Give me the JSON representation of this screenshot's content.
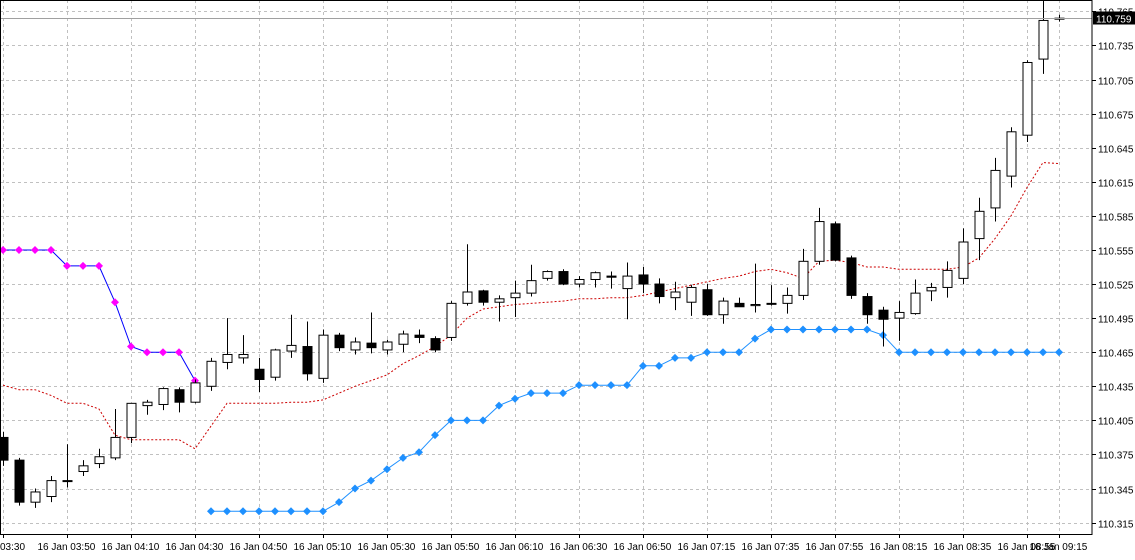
{
  "chart_data": {
    "type": "candlestick",
    "title": "",
    "xlabel": "",
    "ylabel": "",
    "ylim": [
      110.305,
      110.775
    ],
    "grid": true,
    "current_price": "110.759",
    "x_ticks": [
      {
        "index": 0,
        "label": "03:30"
      },
      {
        "index": 4,
        "label": "16 Jan 03:50"
      },
      {
        "index": 8,
        "label": "16 Jan 04:10"
      },
      {
        "index": 12,
        "label": "16 Jan 04:30"
      },
      {
        "index": 16,
        "label": "16 Jan 04:50"
      },
      {
        "index": 20,
        "label": "16 Jan 05:10"
      },
      {
        "index": 24,
        "label": "16 Jan 05:30"
      },
      {
        "index": 28,
        "label": "16 Jan 05:50"
      },
      {
        "index": 32,
        "label": "16 Jan 06:10"
      },
      {
        "index": 36,
        "label": "16 Jan 06:30"
      },
      {
        "index": 40,
        "label": "16 Jan 06:50"
      },
      {
        "index": 44,
        "label": "16 Jan 07:15"
      },
      {
        "index": 48,
        "label": "16 Jan 07:35"
      },
      {
        "index": 52,
        "label": "16 Jan 07:55"
      },
      {
        "index": 56,
        "label": "16 Jan 08:15"
      },
      {
        "index": 60,
        "label": "16 Jan 08:35"
      },
      {
        "index": 64,
        "label": "16 Jan 08:55"
      },
      {
        "index": 66,
        "label": "16 Jan 09:15"
      }
    ],
    "y_ticks": [
      "110.315",
      "110.345",
      "110.375",
      "110.405",
      "110.435",
      "110.465",
      "110.495",
      "110.525",
      "110.555",
      "110.585",
      "110.615",
      "110.645",
      "110.675",
      "110.705",
      "110.735",
      "110.765"
    ],
    "candles": [
      {
        "o": 110.39,
        "h": 110.395,
        "l": 110.365,
        "c": 110.37
      },
      {
        "o": 110.37,
        "h": 110.372,
        "l": 110.33,
        "c": 110.333
      },
      {
        "o": 110.333,
        "h": 110.345,
        "l": 110.328,
        "c": 110.342
      },
      {
        "o": 110.338,
        "h": 110.356,
        "l": 110.333,
        "c": 110.352
      },
      {
        "o": 110.352,
        "h": 110.384,
        "l": 110.346,
        "c": 110.352
      },
      {
        "o": 110.36,
        "h": 110.37,
        "l": 110.356,
        "c": 110.365
      },
      {
        "o": 110.367,
        "h": 110.38,
        "l": 110.363,
        "c": 110.373
      },
      {
        "o": 110.372,
        "h": 110.415,
        "l": 110.37,
        "c": 110.39
      },
      {
        "o": 110.39,
        "h": 110.42,
        "l": 110.385,
        "c": 110.42
      },
      {
        "o": 110.418,
        "h": 110.423,
        "l": 110.41,
        "c": 110.421
      },
      {
        "o": 110.419,
        "h": 110.434,
        "l": 110.414,
        "c": 110.433
      },
      {
        "o": 110.432,
        "h": 110.434,
        "l": 110.412,
        "c": 110.421
      },
      {
        "o": 110.421,
        "h": 110.441,
        "l": 110.42,
        "c": 110.438
      },
      {
        "o": 110.435,
        "h": 110.46,
        "l": 110.431,
        "c": 110.457
      },
      {
        "o": 110.456,
        "h": 110.495,
        "l": 110.45,
        "c": 110.463
      },
      {
        "o": 110.46,
        "h": 110.48,
        "l": 110.455,
        "c": 110.463
      },
      {
        "o": 110.45,
        "h": 110.46,
        "l": 110.43,
        "c": 110.441
      },
      {
        "o": 110.443,
        "h": 110.468,
        "l": 110.44,
        "c": 110.467
      },
      {
        "o": 110.466,
        "h": 110.498,
        "l": 110.46,
        "c": 110.471
      },
      {
        "o": 110.47,
        "h": 110.492,
        "l": 110.44,
        "c": 110.446
      },
      {
        "o": 110.442,
        "h": 110.485,
        "l": 110.438,
        "c": 110.48
      },
      {
        "o": 110.48,
        "h": 110.482,
        "l": 110.466,
        "c": 110.469
      },
      {
        "o": 110.467,
        "h": 110.478,
        "l": 110.463,
        "c": 110.474
      },
      {
        "o": 110.473,
        "h": 110.5,
        "l": 110.464,
        "c": 110.469
      },
      {
        "o": 110.467,
        "h": 110.476,
        "l": 110.463,
        "c": 110.474
      },
      {
        "o": 110.472,
        "h": 110.484,
        "l": 110.465,
        "c": 110.481
      },
      {
        "o": 110.48,
        "h": 110.485,
        "l": 110.473,
        "c": 110.478
      },
      {
        "o": 110.477,
        "h": 110.479,
        "l": 110.465,
        "c": 110.467
      },
      {
        "o": 110.478,
        "h": 110.51,
        "l": 110.475,
        "c": 110.508
      },
      {
        "o": 110.508,
        "h": 110.56,
        "l": 110.506,
        "c": 110.518
      },
      {
        "o": 110.519,
        "h": 110.52,
        "l": 110.506,
        "c": 110.509
      },
      {
        "o": 110.509,
        "h": 110.515,
        "l": 110.492,
        "c": 110.512
      },
      {
        "o": 110.513,
        "h": 110.528,
        "l": 110.496,
        "c": 110.517
      },
      {
        "o": 110.517,
        "h": 110.542,
        "l": 110.514,
        "c": 110.528
      },
      {
        "o": 110.53,
        "h": 110.537,
        "l": 110.528,
        "c": 110.536
      },
      {
        "o": 110.536,
        "h": 110.538,
        "l": 110.524,
        "c": 110.525
      },
      {
        "o": 110.525,
        "h": 110.532,
        "l": 110.522,
        "c": 110.529
      },
      {
        "o": 110.529,
        "h": 110.536,
        "l": 110.522,
        "c": 110.535
      },
      {
        "o": 110.532,
        "h": 110.536,
        "l": 110.521,
        "c": 110.531
      },
      {
        "o": 110.521,
        "h": 110.544,
        "l": 110.494,
        "c": 110.532
      },
      {
        "o": 110.533,
        "h": 110.54,
        "l": 110.517,
        "c": 110.525
      },
      {
        "o": 110.525,
        "h": 110.53,
        "l": 110.508,
        "c": 110.514
      },
      {
        "o": 110.513,
        "h": 110.527,
        "l": 110.502,
        "c": 110.518
      },
      {
        "o": 110.509,
        "h": 110.524,
        "l": 110.497,
        "c": 110.522
      },
      {
        "o": 110.52,
        "h": 110.525,
        "l": 110.497,
        "c": 110.498
      },
      {
        "o": 110.498,
        "h": 110.513,
        "l": 110.49,
        "c": 110.51
      },
      {
        "o": 110.508,
        "h": 110.513,
        "l": 110.505,
        "c": 110.505
      },
      {
        "o": 110.506,
        "h": 110.543,
        "l": 110.5,
        "c": 110.507
      },
      {
        "o": 110.508,
        "h": 110.524,
        "l": 110.506,
        "c": 110.508
      },
      {
        "o": 110.508,
        "h": 110.522,
        "l": 110.499,
        "c": 110.515
      },
      {
        "o": 110.515,
        "h": 110.556,
        "l": 110.511,
        "c": 110.545
      },
      {
        "o": 110.545,
        "h": 110.592,
        "l": 110.542,
        "c": 110.58
      },
      {
        "o": 110.578,
        "h": 110.58,
        "l": 110.545,
        "c": 110.546
      },
      {
        "o": 110.548,
        "h": 110.55,
        "l": 110.512,
        "c": 110.515
      },
      {
        "o": 110.514,
        "h": 110.517,
        "l": 110.49,
        "c": 110.498
      },
      {
        "o": 110.502,
        "h": 110.505,
        "l": 110.47,
        "c": 110.494
      },
      {
        "o": 110.495,
        "h": 110.51,
        "l": 110.475,
        "c": 110.5
      },
      {
        "o": 110.499,
        "h": 110.529,
        "l": 110.498,
        "c": 110.517
      },
      {
        "o": 110.519,
        "h": 110.526,
        "l": 110.51,
        "c": 110.522
      },
      {
        "o": 110.522,
        "h": 110.545,
        "l": 110.513,
        "c": 110.537
      },
      {
        "o": 110.53,
        "h": 110.574,
        "l": 110.525,
        "c": 110.562
      },
      {
        "o": 110.565,
        "h": 110.601,
        "l": 110.546,
        "c": 110.589
      },
      {
        "o": 110.592,
        "h": 110.636,
        "l": 110.58,
        "c": 110.625
      },
      {
        "o": 110.62,
        "h": 110.663,
        "l": 110.61,
        "c": 110.659
      },
      {
        "o": 110.656,
        "h": 110.722,
        "l": 110.65,
        "c": 110.72
      },
      {
        "o": 110.723,
        "h": 110.782,
        "l": 110.71,
        "c": 110.757
      },
      {
        "o": 110.759,
        "h": 110.762,
        "l": 110.756,
        "c": 110.759
      }
    ],
    "series": [
      {
        "color": "#ff00ff",
        "marker": "diamond",
        "line_color": "#0000ff",
        "start_index": 0,
        "values": [
          110.555,
          110.555,
          110.555,
          110.555,
          110.541,
          110.541,
          110.541,
          110.509,
          110.47,
          110.465,
          110.465,
          110.465,
          110.44
        ]
      },
      {
        "color": "#1e90ff",
        "marker": "diamond",
        "line_color": "#1e90ff",
        "start_index": 13,
        "values": [
          110.325,
          110.325,
          110.325,
          110.325,
          110.325,
          110.325,
          110.325,
          110.325,
          110.333,
          110.345,
          110.352,
          110.362,
          110.372,
          110.377,
          110.392,
          110.405,
          110.405,
          110.405,
          110.418,
          110.424,
          110.429,
          110.429,
          110.429,
          110.436,
          110.436,
          110.436,
          110.436,
          110.453,
          110.453,
          110.46,
          110.46,
          110.465,
          110.465,
          110.465,
          110.477,
          110.485,
          110.485,
          110.485,
          110.485,
          110.485,
          110.485,
          110.485,
          110.48,
          110.465,
          110.465,
          110.465,
          110.465,
          110.465,
          110.465,
          110.465,
          110.465,
          110.465,
          110.465,
          110.465
        ]
      },
      {
        "color": "#cc0000",
        "style": "dotted",
        "start_index": 0,
        "values": [
          110.436,
          110.432,
          110.432,
          110.427,
          110.42,
          110.42,
          110.415,
          110.392,
          110.388,
          110.388,
          110.388,
          110.388,
          110.38,
          110.4,
          110.42,
          110.42,
          110.42,
          110.42,
          110.421,
          110.421,
          110.423,
          110.429,
          110.435,
          110.44,
          110.445,
          110.455,
          110.462,
          110.47,
          110.48,
          110.495,
          110.503,
          110.505,
          110.507,
          110.508,
          110.509,
          110.51,
          110.512,
          110.512,
          110.513,
          110.513,
          110.515,
          110.518,
          110.521,
          110.524,
          110.527,
          110.53,
          110.532,
          110.536,
          110.538,
          110.535,
          110.53,
          110.545,
          110.546,
          110.544,
          110.54,
          110.54,
          110.538,
          110.538,
          110.538,
          110.538,
          110.54,
          110.548,
          110.565,
          110.585,
          110.61,
          110.632,
          110.631
        ]
      }
    ]
  }
}
